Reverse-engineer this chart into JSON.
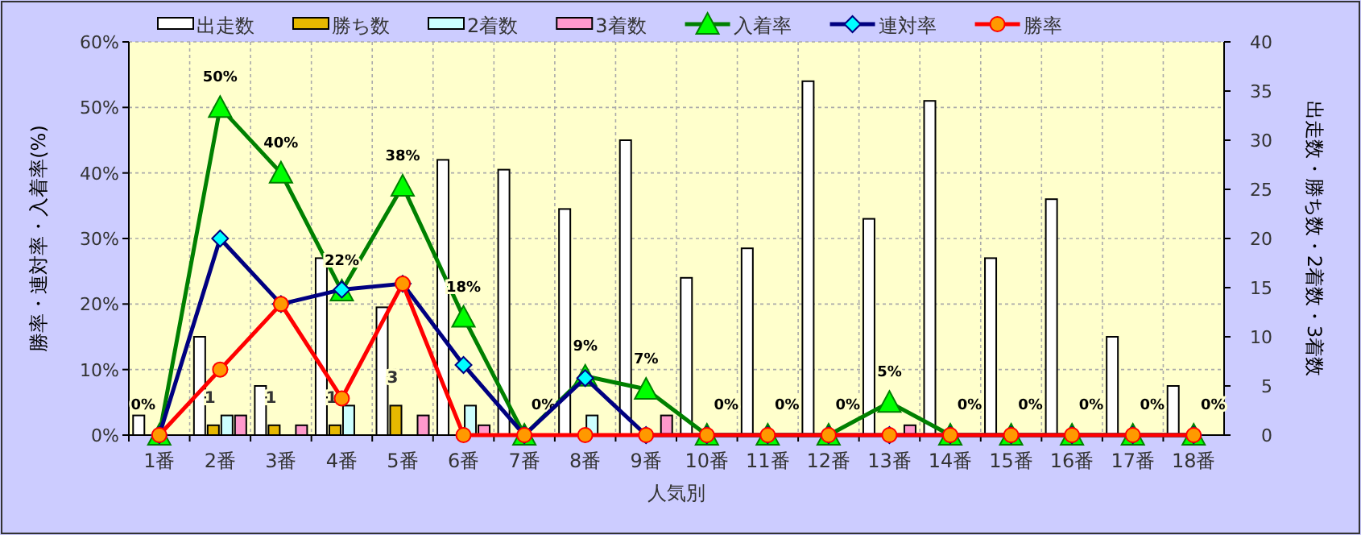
{
  "chart_data": {
    "type": "bar",
    "xlabel": "人気別",
    "ylabel": "勝率・連対率・入着率(%)",
    "y2label": "出走数・勝ち数・2着数・3着数",
    "categories": [
      "1番",
      "2番",
      "3番",
      "4番",
      "5番",
      "6番",
      "7番",
      "8番",
      "9番",
      "10番",
      "11番",
      "12番",
      "13番",
      "14番",
      "15番",
      "16番",
      "17番",
      "18番"
    ],
    "ylim": [
      0,
      60
    ],
    "yticks": [
      {
        "value": 0,
        "label": "0%"
      },
      {
        "value": 10,
        "label": "10%"
      },
      {
        "value": 20,
        "label": "20%"
      },
      {
        "value": 30,
        "label": "30%"
      },
      {
        "value": 40,
        "label": "40%"
      },
      {
        "value": 50,
        "label": "50%"
      },
      {
        "value": 60,
        "label": "60%"
      }
    ],
    "y2lim": [
      0,
      40
    ],
    "y2ticks": [
      0,
      5,
      10,
      15,
      20,
      25,
      30,
      35,
      40
    ],
    "grid": true,
    "legend": "top",
    "series": [
      {
        "name": "出走数",
        "axis": "y2",
        "color": "#ffffff",
        "values": [
          2,
          10,
          5,
          18,
          13,
          28,
          27,
          23,
          30,
          16,
          19,
          36,
          22,
          34,
          18,
          24,
          10,
          5
        ]
      },
      {
        "name": "勝ち数",
        "axis": "y2",
        "color": "#e6b800",
        "values": [
          0,
          1,
          1,
          1,
          3,
          0,
          0,
          0,
          0,
          0,
          0,
          0,
          0,
          0,
          0,
          0,
          0,
          0
        ],
        "value_labels": [
          null,
          "1",
          "1",
          "1",
          "3",
          null,
          null,
          null,
          null,
          null,
          null,
          null,
          null,
          null,
          null,
          null,
          null,
          null
        ]
      },
      {
        "name": "2着数",
        "axis": "y2",
        "color": "#ccffff",
        "values": [
          0,
          2,
          0,
          3,
          0,
          3,
          0,
          2,
          0,
          0,
          0,
          0,
          0,
          0,
          0,
          0,
          0,
          0
        ]
      },
      {
        "name": "3着数",
        "axis": "y2",
        "color": "#ff99cc",
        "values": [
          0,
          2,
          1,
          0,
          2,
          1,
          0,
          0,
          2,
          0,
          0,
          0,
          1,
          0,
          0,
          0,
          0,
          0
        ]
      },
      {
        "name": "入着率",
        "type": "line",
        "color": "#008000",
        "marker": "triangle",
        "values": [
          0,
          50,
          40,
          22,
          38,
          18,
          0,
          9,
          7,
          0,
          0,
          0,
          5,
          0,
          0,
          0,
          0,
          0
        ],
        "value_labels": [
          "0%",
          "50%",
          "40%",
          "22%",
          "38%",
          "18%",
          "0%",
          "9%",
          "7%",
          "0%",
          "0%",
          "0%",
          "5%",
          "0%",
          "0%",
          "0%",
          "0%",
          "0%"
        ]
      },
      {
        "name": "連対率",
        "type": "line",
        "color": "#000080",
        "marker": "diamond",
        "values": [
          0,
          30,
          20,
          22.2,
          23.1,
          10.7,
          0,
          8.7,
          0,
          0,
          0,
          0,
          0,
          0,
          0,
          0,
          0,
          0
        ]
      },
      {
        "name": "勝率",
        "type": "line",
        "color": "#ff0000",
        "marker": "circle",
        "values": [
          0,
          10,
          20,
          5.6,
          23.1,
          0,
          0,
          0,
          0,
          0,
          0,
          0,
          0,
          0,
          0,
          0,
          0,
          0
        ]
      }
    ]
  }
}
